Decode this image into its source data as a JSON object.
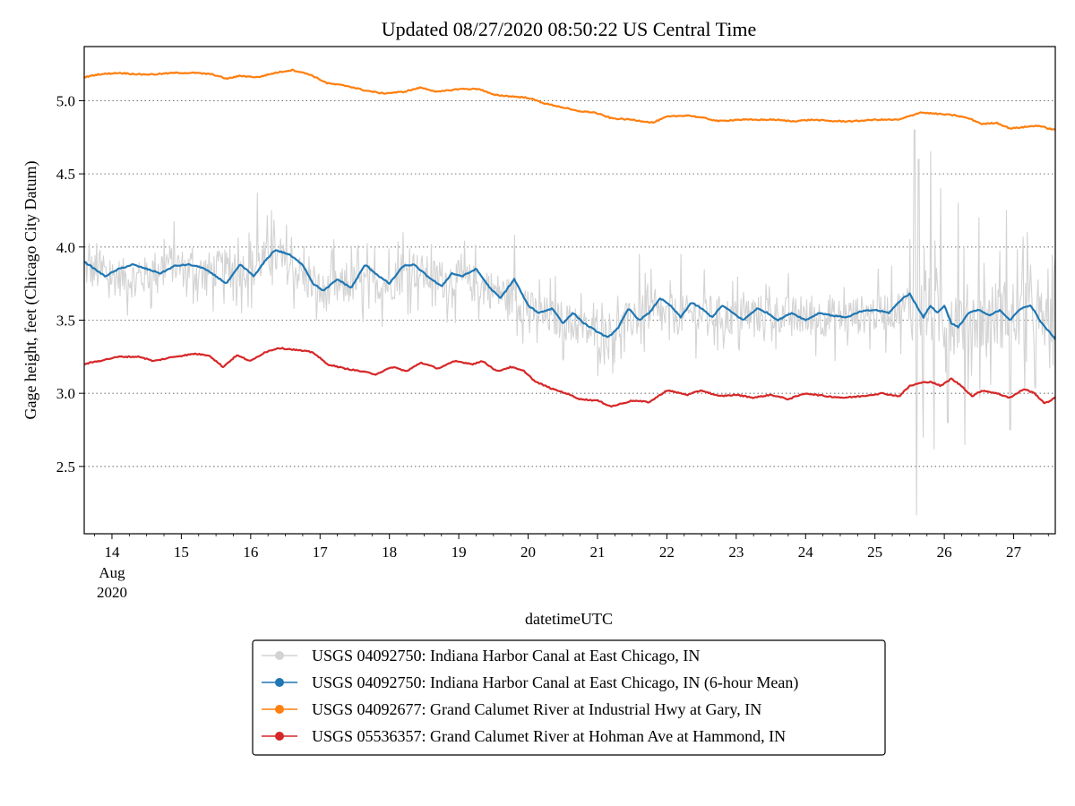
{
  "chart_data": {
    "type": "line",
    "title": "Updated 08/27/2020 08:50:22 US Central Time",
    "xlabel": "datetimeUTC",
    "ylabel": "Gage height, feet (Chicago City Datum)",
    "xlim": [
      13.6,
      27.6
    ],
    "ylim": [
      2.04,
      5.37
    ],
    "grid": "horizontal dotted",
    "legend_position": "below",
    "x_ticks": [
      {
        "value": 14,
        "label": "14",
        "sub": [
          "Aug",
          "2020"
        ]
      },
      {
        "value": 15,
        "label": "15"
      },
      {
        "value": 16,
        "label": "16"
      },
      {
        "value": 17,
        "label": "17"
      },
      {
        "value": 18,
        "label": "18"
      },
      {
        "value": 19,
        "label": "19"
      },
      {
        "value": 20,
        "label": "20"
      },
      {
        "value": 21,
        "label": "21"
      },
      {
        "value": 22,
        "label": "22"
      },
      {
        "value": 23,
        "label": "23"
      },
      {
        "value": 24,
        "label": "24"
      },
      {
        "value": 25,
        "label": "25"
      },
      {
        "value": 26,
        "label": "26"
      },
      {
        "value": 27,
        "label": "27"
      }
    ],
    "y_ticks": [
      {
        "value": 2.5,
        "label": "2.5"
      },
      {
        "value": 3.0,
        "label": "3.0"
      },
      {
        "value": 3.5,
        "label": "3.5"
      },
      {
        "value": 4.0,
        "label": "4.0"
      },
      {
        "value": 4.5,
        "label": "4.5"
      },
      {
        "value": 5.0,
        "label": "5.0"
      }
    ],
    "series": [
      {
        "name": "USGS 04092750: Indiana Harbor Canal at East Chicago, IN",
        "color": "#d3d3d3",
        "style": "noisy",
        "noise_amplitude": 0.22,
        "points": [
          [
            13.6,
            3.85
          ],
          [
            14.0,
            3.8
          ],
          [
            14.4,
            3.78
          ],
          [
            14.8,
            3.9
          ],
          [
            15.2,
            3.82
          ],
          [
            15.6,
            3.85
          ],
          [
            16.0,
            3.85
          ],
          [
            16.3,
            3.95
          ],
          [
            16.7,
            3.82
          ],
          [
            17.0,
            3.68
          ],
          [
            17.5,
            3.75
          ],
          [
            18.0,
            3.75
          ],
          [
            18.3,
            3.85
          ],
          [
            18.7,
            3.78
          ],
          [
            19.0,
            3.78
          ],
          [
            19.4,
            3.72
          ],
          [
            19.8,
            3.65
          ],
          [
            20.1,
            3.55
          ],
          [
            20.5,
            3.5
          ],
          [
            21.0,
            3.4
          ],
          [
            21.3,
            3.45
          ],
          [
            21.7,
            3.55
          ],
          [
            22.0,
            3.52
          ],
          [
            22.5,
            3.55
          ],
          [
            23.0,
            3.52
          ],
          [
            23.5,
            3.55
          ],
          [
            24.0,
            3.52
          ],
          [
            24.5,
            3.52
          ],
          [
            25.0,
            3.55
          ],
          [
            25.4,
            3.58
          ],
          [
            25.6,
            3.6
          ],
          [
            26.0,
            3.5
          ],
          [
            26.5,
            3.52
          ],
          [
            27.0,
            3.55
          ],
          [
            27.3,
            3.5
          ],
          [
            27.6,
            3.4
          ]
        ],
        "spikes": [
          [
            16.1,
            4.37
          ],
          [
            16.3,
            4.25
          ],
          [
            17.2,
            4.05
          ],
          [
            18.2,
            4.1
          ],
          [
            19.8,
            4.08
          ],
          [
            21.6,
            3.95
          ],
          [
            22.2,
            3.95
          ],
          [
            25.5,
            4.05
          ],
          [
            25.57,
            4.8
          ],
          [
            25.6,
            2.17
          ],
          [
            25.63,
            4.6
          ],
          [
            25.7,
            2.7
          ],
          [
            25.8,
            4.65
          ],
          [
            25.85,
            2.62
          ],
          [
            25.95,
            4.4
          ],
          [
            26.05,
            2.8
          ],
          [
            26.2,
            4.3
          ],
          [
            26.3,
            2.65
          ],
          [
            26.5,
            4.2
          ],
          [
            26.9,
            4.25
          ],
          [
            26.95,
            2.75
          ],
          [
            27.2,
            4.1
          ],
          [
            27.3,
            3.05
          ],
          [
            27.5,
            3.85
          ]
        ]
      },
      {
        "name": "USGS 04092750: Indiana Harbor Canal at East Chicago, IN (6-hour Mean)",
        "color": "#1f77b4",
        "points": [
          [
            13.6,
            3.9
          ],
          [
            13.75,
            3.85
          ],
          [
            13.9,
            3.8
          ],
          [
            14.1,
            3.85
          ],
          [
            14.3,
            3.88
          ],
          [
            14.5,
            3.85
          ],
          [
            14.7,
            3.82
          ],
          [
            14.9,
            3.87
          ],
          [
            15.1,
            3.88
          ],
          [
            15.3,
            3.86
          ],
          [
            15.5,
            3.8
          ],
          [
            15.65,
            3.75
          ],
          [
            15.85,
            3.88
          ],
          [
            16.05,
            3.8
          ],
          [
            16.2,
            3.9
          ],
          [
            16.35,
            3.98
          ],
          [
            16.55,
            3.95
          ],
          [
            16.75,
            3.88
          ],
          [
            16.9,
            3.75
          ],
          [
            17.05,
            3.7
          ],
          [
            17.25,
            3.78
          ],
          [
            17.45,
            3.72
          ],
          [
            17.65,
            3.88
          ],
          [
            17.85,
            3.8
          ],
          [
            18.0,
            3.75
          ],
          [
            18.2,
            3.87
          ],
          [
            18.35,
            3.88
          ],
          [
            18.55,
            3.8
          ],
          [
            18.75,
            3.73
          ],
          [
            18.9,
            3.82
          ],
          [
            19.05,
            3.8
          ],
          [
            19.25,
            3.85
          ],
          [
            19.45,
            3.72
          ],
          [
            19.6,
            3.65
          ],
          [
            19.8,
            3.78
          ],
          [
            20.0,
            3.6
          ],
          [
            20.15,
            3.55
          ],
          [
            20.35,
            3.58
          ],
          [
            20.5,
            3.48
          ],
          [
            20.65,
            3.55
          ],
          [
            20.8,
            3.48
          ],
          [
            21.0,
            3.42
          ],
          [
            21.15,
            3.38
          ],
          [
            21.3,
            3.45
          ],
          [
            21.45,
            3.58
          ],
          [
            21.6,
            3.5
          ],
          [
            21.75,
            3.55
          ],
          [
            21.9,
            3.65
          ],
          [
            22.05,
            3.6
          ],
          [
            22.2,
            3.52
          ],
          [
            22.35,
            3.62
          ],
          [
            22.5,
            3.58
          ],
          [
            22.65,
            3.52
          ],
          [
            22.8,
            3.6
          ],
          [
            22.95,
            3.55
          ],
          [
            23.1,
            3.5
          ],
          [
            23.3,
            3.58
          ],
          [
            23.45,
            3.55
          ],
          [
            23.6,
            3.5
          ],
          [
            23.8,
            3.55
          ],
          [
            24.0,
            3.5
          ],
          [
            24.2,
            3.55
          ],
          [
            24.4,
            3.53
          ],
          [
            24.6,
            3.52
          ],
          [
            24.8,
            3.56
          ],
          [
            25.0,
            3.57
          ],
          [
            25.2,
            3.55
          ],
          [
            25.4,
            3.65
          ],
          [
            25.5,
            3.68
          ],
          [
            25.6,
            3.6
          ],
          [
            25.7,
            3.52
          ],
          [
            25.8,
            3.6
          ],
          [
            25.9,
            3.55
          ],
          [
            26.0,
            3.6
          ],
          [
            26.1,
            3.48
          ],
          [
            26.2,
            3.45
          ],
          [
            26.35,
            3.55
          ],
          [
            26.5,
            3.57
          ],
          [
            26.65,
            3.53
          ],
          [
            26.8,
            3.57
          ],
          [
            26.95,
            3.5
          ],
          [
            27.1,
            3.58
          ],
          [
            27.25,
            3.6
          ],
          [
            27.4,
            3.48
          ],
          [
            27.55,
            3.4
          ],
          [
            27.6,
            3.37
          ]
        ]
      },
      {
        "name": "USGS 04092677: Grand Calumet River at Industrial Hwy at Gary, IN",
        "color": "#ff7f0e",
        "points": [
          [
            13.6,
            5.16
          ],
          [
            13.8,
            5.18
          ],
          [
            14.1,
            5.19
          ],
          [
            14.4,
            5.18
          ],
          [
            14.6,
            5.18
          ],
          [
            14.9,
            5.19
          ],
          [
            15.2,
            5.19
          ],
          [
            15.45,
            5.18
          ],
          [
            15.65,
            5.15
          ],
          [
            15.85,
            5.17
          ],
          [
            16.1,
            5.16
          ],
          [
            16.35,
            5.19
          ],
          [
            16.6,
            5.21
          ],
          [
            16.85,
            5.18
          ],
          [
            17.1,
            5.12
          ],
          [
            17.4,
            5.1
          ],
          [
            17.65,
            5.07
          ],
          [
            17.9,
            5.05
          ],
          [
            18.2,
            5.06
          ],
          [
            18.45,
            5.09
          ],
          [
            18.7,
            5.06
          ],
          [
            19.0,
            5.08
          ],
          [
            19.3,
            5.08
          ],
          [
            19.5,
            5.04
          ],
          [
            19.75,
            5.03
          ],
          [
            20.0,
            5.02
          ],
          [
            20.25,
            4.98
          ],
          [
            20.45,
            4.96
          ],
          [
            20.7,
            4.93
          ],
          [
            20.95,
            4.92
          ],
          [
            21.2,
            4.88
          ],
          [
            21.5,
            4.87
          ],
          [
            21.8,
            4.85
          ],
          [
            22.0,
            4.89
          ],
          [
            22.3,
            4.9
          ],
          [
            22.55,
            4.88
          ],
          [
            22.75,
            4.86
          ],
          [
            23.0,
            4.87
          ],
          [
            23.3,
            4.87
          ],
          [
            23.55,
            4.87
          ],
          [
            23.8,
            4.86
          ],
          [
            24.1,
            4.87
          ],
          [
            24.4,
            4.86
          ],
          [
            24.7,
            4.86
          ],
          [
            25.0,
            4.87
          ],
          [
            25.35,
            4.87
          ],
          [
            25.65,
            4.92
          ],
          [
            25.9,
            4.91
          ],
          [
            26.15,
            4.9
          ],
          [
            26.35,
            4.88
          ],
          [
            26.55,
            4.84
          ],
          [
            26.75,
            4.85
          ],
          [
            26.95,
            4.81
          ],
          [
            27.15,
            4.82
          ],
          [
            27.35,
            4.83
          ],
          [
            27.5,
            4.81
          ],
          [
            27.6,
            4.8
          ]
        ]
      },
      {
        "name": "USGS 05536357: Grand Calumet River at Hohman Ave at Hammond, IN",
        "color": "#d62728",
        "points": [
          [
            13.6,
            3.2
          ],
          [
            13.8,
            3.22
          ],
          [
            14.1,
            3.25
          ],
          [
            14.4,
            3.25
          ],
          [
            14.6,
            3.22
          ],
          [
            14.9,
            3.25
          ],
          [
            15.2,
            3.27
          ],
          [
            15.4,
            3.26
          ],
          [
            15.6,
            3.18
          ],
          [
            15.8,
            3.26
          ],
          [
            16.0,
            3.22
          ],
          [
            16.2,
            3.28
          ],
          [
            16.4,
            3.31
          ],
          [
            16.6,
            3.3
          ],
          [
            16.9,
            3.28
          ],
          [
            17.1,
            3.2
          ],
          [
            17.35,
            3.17
          ],
          [
            17.6,
            3.15
          ],
          [
            17.8,
            3.13
          ],
          [
            18.05,
            3.18
          ],
          [
            18.25,
            3.15
          ],
          [
            18.45,
            3.21
          ],
          [
            18.7,
            3.17
          ],
          [
            18.95,
            3.22
          ],
          [
            19.2,
            3.2
          ],
          [
            19.35,
            3.22
          ],
          [
            19.55,
            3.15
          ],
          [
            19.75,
            3.18
          ],
          [
            19.95,
            3.15
          ],
          [
            20.1,
            3.08
          ],
          [
            20.35,
            3.03
          ],
          [
            20.55,
            3.0
          ],
          [
            20.75,
            2.96
          ],
          [
            21.0,
            2.95
          ],
          [
            21.2,
            2.91
          ],
          [
            21.5,
            2.95
          ],
          [
            21.75,
            2.94
          ],
          [
            22.0,
            3.02
          ],
          [
            22.3,
            2.99
          ],
          [
            22.5,
            3.02
          ],
          [
            22.75,
            2.98
          ],
          [
            23.0,
            2.99
          ],
          [
            23.25,
            2.97
          ],
          [
            23.5,
            2.99
          ],
          [
            23.75,
            2.96
          ],
          [
            24.0,
            3.0
          ],
          [
            24.3,
            2.98
          ],
          [
            24.55,
            2.97
          ],
          [
            24.8,
            2.98
          ],
          [
            25.1,
            3.0
          ],
          [
            25.35,
            2.98
          ],
          [
            25.5,
            3.05
          ],
          [
            25.65,
            3.07
          ],
          [
            25.8,
            3.08
          ],
          [
            25.95,
            3.05
          ],
          [
            26.1,
            3.1
          ],
          [
            26.25,
            3.05
          ],
          [
            26.4,
            2.98
          ],
          [
            26.55,
            3.02
          ],
          [
            26.75,
            3.0
          ],
          [
            26.95,
            2.97
          ],
          [
            27.15,
            3.03
          ],
          [
            27.3,
            3.0
          ],
          [
            27.45,
            2.93
          ],
          [
            27.6,
            2.97
          ]
        ]
      }
    ]
  }
}
